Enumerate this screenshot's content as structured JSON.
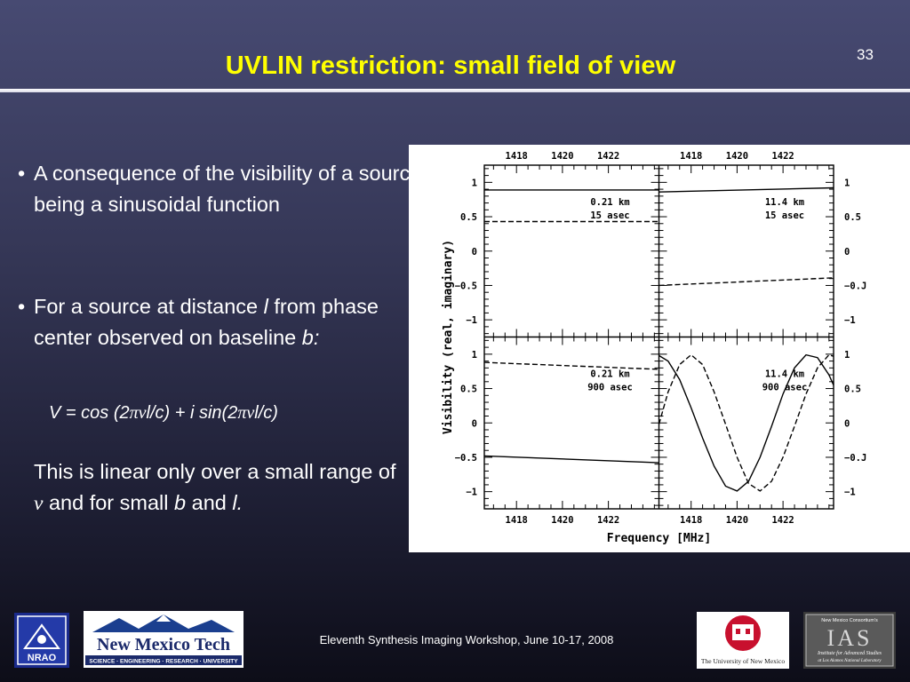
{
  "slide": {
    "title": "UVLIN restriction: small field of view",
    "page_number": "33",
    "footer": "Eleventh Synthesis Imaging Workshop, June 10-17, 2008"
  },
  "bullets": [
    {
      "marker": "•",
      "text": "A consequence of the visibility of a source being a sinusoidal function"
    },
    {
      "marker": "•",
      "prefix": "For a source at distance ",
      "l": "l",
      "mid": " from phase center observed on baseline ",
      "b": "b:"
    }
  ],
  "formula": {
    "a": "V = cos (2",
    "pi": "π",
    "nu": "ν",
    "b": "l/c) + i sin(2",
    "c": "l/c)"
  },
  "note": {
    "a": "This is linear only over a small range of ",
    "nu": "ν",
    "b": " and for small ",
    "bvar": "b",
    "c": " and ",
    "lvar": "l."
  },
  "logos": {
    "nrao": "NRAO",
    "nmt_name": "New Mexico Tech",
    "nmt_tagline": "SCIENCE · ENGINEERING · RESEARCH · UNIVERSITY",
    "unm": "The University of New Mexico",
    "ias_top": "New Mexico Consortium's",
    "ias_name": "IAS",
    "ias_line1": "Institute for Advanced Studies",
    "ias_line2": "at Los Alamos National Laboratory"
  },
  "chart_data": {
    "type": "line",
    "xlabel": "Frequency [MHz]",
    "ylabel": "Visibility (real, imaginary)",
    "xlim": [
      1416.6,
      1424.2
    ],
    "ylim": [
      -1.25,
      1.25
    ],
    "x_ticks": [
      "1418",
      "1420",
      "1422"
    ],
    "y_tick_labels_left": [
      "1",
      "0.5",
      "0",
      "−0.5",
      "−1"
    ],
    "y_tick_labels_right": [
      "1",
      "0.5",
      "0",
      "−0.J",
      "−1"
    ],
    "panels": [
      {
        "position": "top-left",
        "annotation": [
          "0.21 km",
          "15 asec"
        ],
        "series": [
          {
            "style": "solid",
            "x": [
              1416.6,
              1424.2
            ],
            "y": [
              0.89,
              0.89
            ]
          },
          {
            "style": "dashed",
            "x": [
              1416.6,
              1424.2
            ],
            "y": [
              0.43,
              0.43
            ]
          }
        ]
      },
      {
        "position": "top-right",
        "annotation": [
          "11.4 km",
          "15 asec"
        ],
        "series": [
          {
            "style": "solid",
            "x": [
              1416.6,
              1424.2
            ],
            "y": [
              0.86,
              0.92
            ]
          },
          {
            "style": "dashed",
            "x": [
              1416.6,
              1424.2
            ],
            "y": [
              -0.5,
              -0.39
            ]
          }
        ]
      },
      {
        "position": "bottom-left",
        "annotation": [
          "0.21 km",
          "900 asec"
        ],
        "series": [
          {
            "style": "solid",
            "x": [
              1416.6,
              1424.2
            ],
            "y": [
              -0.48,
              -0.58
            ]
          },
          {
            "style": "dashed",
            "x": [
              1416.6,
              1424.2
            ],
            "y": [
              0.88,
              0.78
            ]
          }
        ]
      },
      {
        "position": "bottom-right",
        "annotation": [
          "11.4 km",
          "900 asec"
        ],
        "series": [
          {
            "style": "solid",
            "x": [
              1416.6,
              1417.0,
              1417.5,
              1418.0,
              1418.5,
              1419.0,
              1419.5,
              1420.0,
              1420.5,
              1421.0,
              1421.5,
              1422.0,
              1422.5,
              1423.0,
              1423.5,
              1424.0,
              1424.2
            ],
            "y": [
              0.98,
              0.9,
              0.63,
              0.22,
              -0.22,
              -0.63,
              -0.92,
              -0.99,
              -0.85,
              -0.5,
              -0.05,
              0.42,
              0.8,
              0.99,
              0.95,
              0.7,
              0.55
            ]
          },
          {
            "style": "dashed",
            "x": [
              1416.6,
              1417.0,
              1417.5,
              1418.0,
              1418.5,
              1419.0,
              1419.5,
              1420.0,
              1420.5,
              1421.0,
              1421.5,
              1422.0,
              1422.5,
              1423.0,
              1423.5,
              1424.0,
              1424.2
            ],
            "y": [
              -0.02,
              0.45,
              0.85,
              0.99,
              0.85,
              0.45,
              -0.02,
              -0.5,
              -0.88,
              -0.99,
              -0.85,
              -0.5,
              -0.05,
              0.42,
              0.8,
              0.99,
              0.97
            ]
          }
        ]
      }
    ]
  }
}
